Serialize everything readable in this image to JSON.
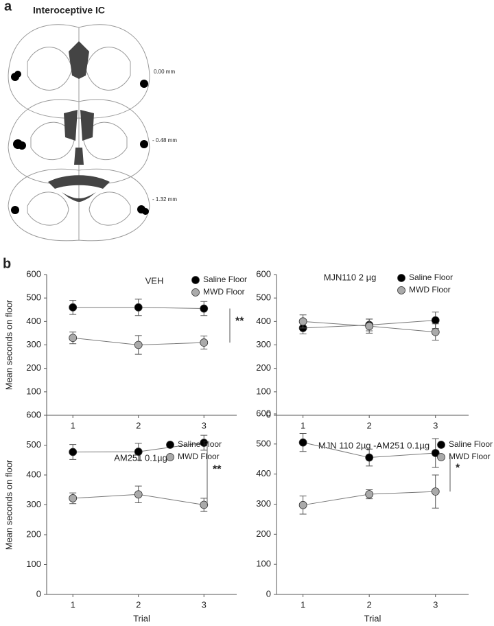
{
  "panels": {
    "a": {
      "label": "a",
      "title": "Interoceptive IC",
      "levels": [
        "0.00 mm",
        "- 0.48 mm",
        "- 1.32 mm"
      ]
    },
    "b": {
      "label": "b"
    }
  },
  "chart_data": [
    {
      "type": "line",
      "title": "VEH",
      "ylabel": "Mean seconds on floor",
      "x": [
        1,
        2,
        3
      ],
      "xlim": [
        0.6,
        3.5
      ],
      "xticks": [
        1,
        2,
        3
      ],
      "ylim": [
        0,
        600
      ],
      "yticks": [
        0,
        100,
        200,
        300,
        400,
        500,
        600
      ],
      "annotation": "**",
      "series": [
        {
          "name": "Saline Floor",
          "color": "#000000",
          "values": [
            460,
            460,
            455
          ],
          "errors": [
            30,
            35,
            30
          ]
        },
        {
          "name": "MWD Floor",
          "color": "#aaaaaa",
          "values": [
            330,
            300,
            310
          ],
          "errors": [
            25,
            40,
            28
          ]
        }
      ]
    },
    {
      "type": "line",
      "title": "MJN110 2 µg",
      "x": [
        1,
        2,
        3
      ],
      "xlim": [
        0.6,
        3.5
      ],
      "xticks": [
        1,
        2,
        3
      ],
      "ylim": [
        0,
        600
      ],
      "yticks": [
        0,
        100,
        200,
        300,
        400,
        500,
        600
      ],
      "series": [
        {
          "name": "Saline Floor",
          "color": "#000000",
          "values": [
            372,
            385,
            405
          ],
          "errors": [
            25,
            25,
            35
          ]
        },
        {
          "name": "MWD Floor",
          "color": "#aaaaaa",
          "values": [
            400,
            380,
            355
          ],
          "errors": [
            28,
            30,
            35
          ]
        }
      ]
    },
    {
      "type": "line",
      "title": "AM251 0.1µg",
      "ylabel": "Mean seconds on floor",
      "xlabel": "Trial",
      "x": [
        1,
        2,
        3
      ],
      "xlim": [
        0.6,
        3.5
      ],
      "xticks": [
        1,
        2,
        3
      ],
      "ylim": [
        0,
        600
      ],
      "yticks": [
        0,
        100,
        200,
        300,
        400,
        500,
        600
      ],
      "annotation": "**",
      "series": [
        {
          "name": "Saline Floor",
          "color": "#000000",
          "values": [
            477,
            478,
            508
          ],
          "errors": [
            25,
            28,
            25
          ]
        },
        {
          "name": "MWD Floor",
          "color": "#aaaaaa",
          "values": [
            322,
            335,
            300
          ],
          "errors": [
            18,
            28,
            22
          ]
        }
      ]
    },
    {
      "type": "line",
      "title": "MJN 110 2µg -AM251 0.1µg",
      "xlabel": "Trial",
      "x": [
        1,
        2,
        3
      ],
      "xlim": [
        0.6,
        3.5
      ],
      "xticks": [
        1,
        2,
        3
      ],
      "ylim": [
        0,
        600
      ],
      "yticks": [
        0,
        100,
        200,
        300,
        400,
        500,
        600
      ],
      "annotation": "*",
      "series": [
        {
          "name": "Saline Floor",
          "color": "#000000",
          "values": [
            505,
            455,
            470
          ],
          "errors": [
            30,
            28,
            48
          ]
        },
        {
          "name": "MWD Floor",
          "color": "#aaaaaa",
          "values": [
            297,
            333,
            342
          ],
          "errors": [
            30,
            15,
            55
          ]
        }
      ]
    }
  ]
}
